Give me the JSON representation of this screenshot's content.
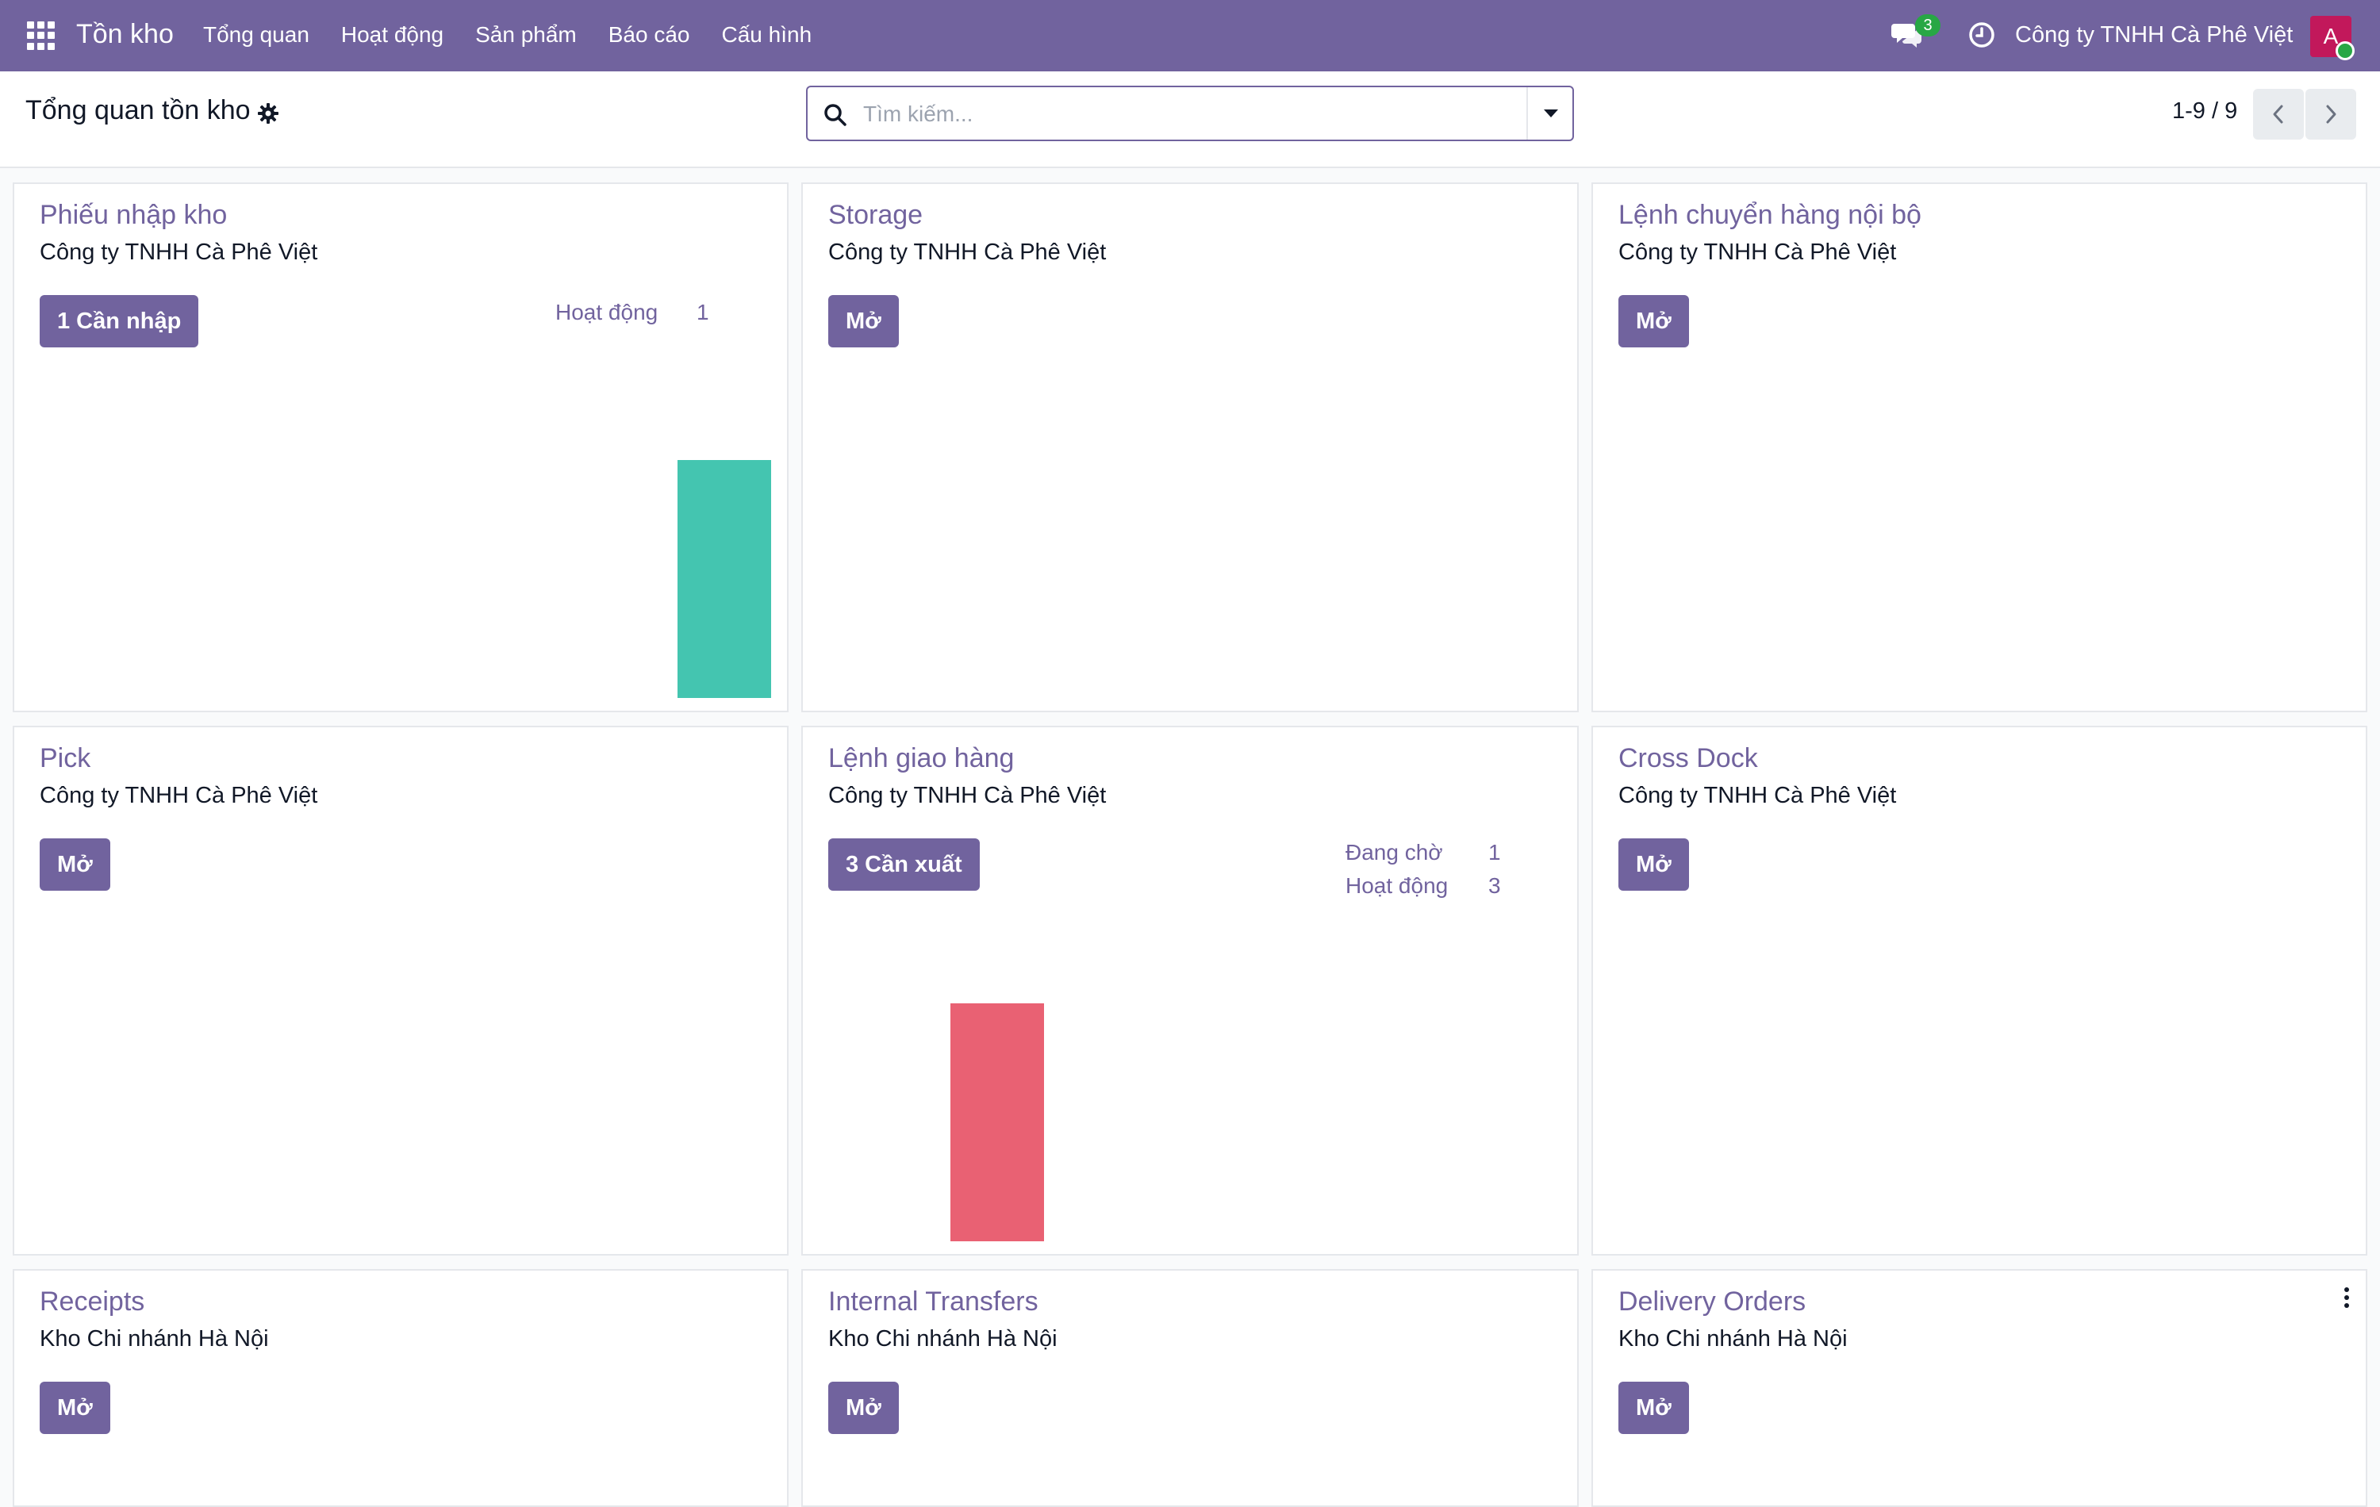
{
  "navbar": {
    "app_name": "Tồn kho",
    "menu": [
      "Tổng quan",
      "Hoạt động",
      "Sản phẩm",
      "Báo cáo",
      "Cấu hình"
    ],
    "chat_count": "3",
    "company": "Công ty TNHH Cà Phê Việt",
    "avatar_letter": "A"
  },
  "control_panel": {
    "title": "Tổng quan tồn kho",
    "search_placeholder": "Tìm kiếm...",
    "pager": "1-9 / 9"
  },
  "colors": {
    "brand": "#71639e",
    "bar_green": "#44c5b0",
    "bar_red": "#e96173",
    "chat_badge": "#28a745",
    "avatar": "#c2185b"
  },
  "cards": [
    {
      "title": "Phiếu nhập kho",
      "company": "Công ty TNHH Cà Phê Việt",
      "button": "1 Cần nhập",
      "stats": [
        {
          "label": "Hoạt động",
          "value": "1"
        }
      ],
      "chart_bar_value": 1
    },
    {
      "title": "Storage",
      "company": "Công ty TNHH Cà Phê Việt",
      "button": "Mở"
    },
    {
      "title": "Lệnh chuyển hàng nội bộ",
      "company": "Công ty TNHH Cà Phê Việt",
      "button": "Mở"
    },
    {
      "title": "Pick",
      "company": "Công ty TNHH Cà Phê Việt",
      "button": "Mở"
    },
    {
      "title": "Lệnh giao hàng",
      "company": "Công ty TNHH Cà Phê Việt",
      "button": "3 Cần xuất",
      "stats": [
        {
          "label": "Đang chờ",
          "value": "1"
        },
        {
          "label": "Hoạt động",
          "value": "3"
        }
      ],
      "chart_bar_value": 1
    },
    {
      "title": "Cross Dock",
      "company": "Công ty TNHH Cà Phê Việt",
      "button": "Mở"
    },
    {
      "title": "Receipts",
      "company": "Kho Chi nhánh Hà Nội",
      "button": "Mở"
    },
    {
      "title": "Internal Transfers",
      "company": "Kho Chi nhánh Hà Nội",
      "button": "Mở"
    },
    {
      "title": "Delivery Orders",
      "company": "Kho Chi nhánh Hà Nội",
      "button": "Mở"
    }
  ]
}
